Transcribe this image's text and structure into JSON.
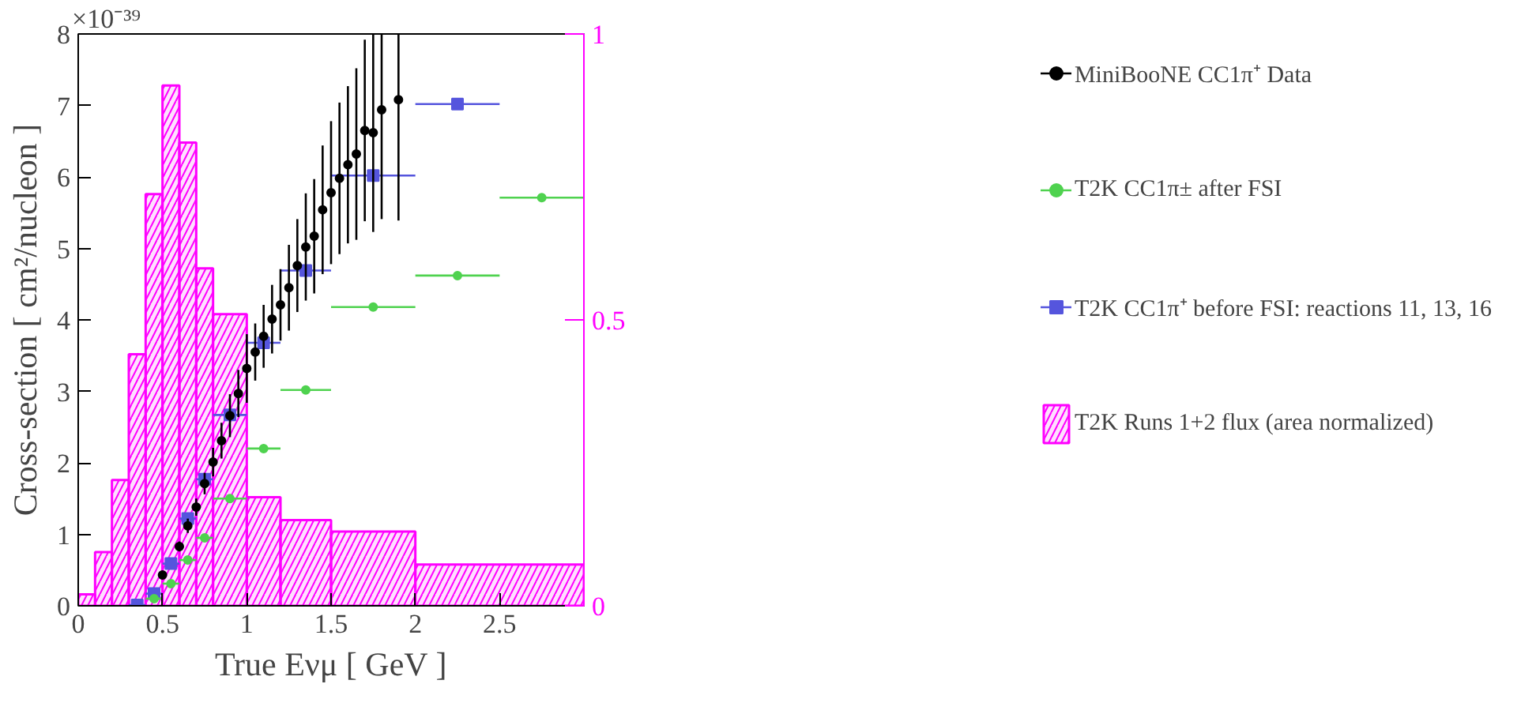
{
  "chart_data": {
    "type": "scatter",
    "xlabel": "True Eνμ [ GeV ]",
    "ylabel": "Cross-section [ cm²/nucleon ]",
    "annotations": [
      "×10⁻³⁹"
    ],
    "xlim": [
      0,
      3
    ],
    "xticks": [
      0,
      0.5,
      1,
      1.5,
      2,
      2.5
    ],
    "ylim": [
      0,
      8
    ],
    "yticks": [
      0,
      1,
      2,
      3,
      4,
      5,
      6,
      7,
      8
    ],
    "y2lim": [
      0,
      1
    ],
    "y2ticks": [
      0,
      0.5,
      1
    ],
    "grid": false,
    "legend": "right",
    "series": [
      {
        "name": "MiniBooNE CC1π⁺ Data",
        "color": "#000000",
        "marker": "circle",
        "x": [
          0.5,
          0.6,
          0.65,
          0.7,
          0.75,
          0.8,
          0.85,
          0.9,
          0.95,
          1.0,
          1.05,
          1.1,
          1.15,
          1.2,
          1.25,
          1.3,
          1.35,
          1.4,
          1.45,
          1.5,
          1.55,
          1.6,
          1.65,
          1.7,
          1.75,
          1.8,
          1.9
        ],
        "values": [
          0.43,
          0.83,
          1.12,
          1.38,
          1.71,
          2.01,
          2.31,
          2.66,
          2.97,
          3.32,
          3.55,
          3.77,
          4.01,
          4.21,
          4.45,
          4.76,
          5.02,
          5.17,
          5.54,
          5.78,
          5.98,
          6.17,
          6.32,
          6.65,
          6.62,
          6.94,
          7.08
        ],
        "errors": [
          0.05,
          0.07,
          0.1,
          0.12,
          0.15,
          0.2,
          0.25,
          0.3,
          0.33,
          0.48,
          0.4,
          0.44,
          0.48,
          0.5,
          0.6,
          0.65,
          0.75,
          0.8,
          0.9,
          1.0,
          1.06,
          1.1,
          1.2,
          1.27,
          [
            5.23,
            8
          ],
          [
            5.41,
            8
          ],
          [
            5.39,
            8
          ]
        ]
      },
      {
        "name": "T2K CC1π± after FSI",
        "color": "#4fd24f",
        "marker": "circle",
        "x": [
          0.45,
          0.55,
          0.65,
          0.75,
          0.9,
          1.1,
          1.35,
          1.75,
          2.25,
          2.75
        ],
        "values": [
          0.1,
          0.31,
          0.64,
          0.95,
          1.5,
          2.2,
          3.02,
          4.18,
          4.62,
          5.71
        ],
        "xerrors": [
          0.05,
          0.05,
          0.05,
          0.05,
          0.1,
          0.1,
          0.15,
          0.25,
          0.25,
          0.25
        ]
      },
      {
        "name": "T2K CC1π⁺ before FSI: reactions 11, 13, 16",
        "color": "#5555dd",
        "marker": "square",
        "x": [
          0.35,
          0.45,
          0.55,
          0.65,
          0.75,
          0.9,
          1.1,
          1.35,
          1.75,
          2.25
        ],
        "values": [
          0.01,
          0.17,
          0.59,
          1.22,
          1.77,
          2.67,
          3.68,
          4.69,
          6.02,
          7.02
        ],
        "xerrors": [
          0.05,
          0.05,
          0.05,
          0.05,
          0.05,
          0.1,
          0.1,
          0.15,
          0.25,
          0.25
        ]
      },
      {
        "name": "T2K Runs 1+2 flux (area normalized)",
        "type": "histogram",
        "axis": "y2",
        "color": "#ff00ff",
        "bins": [
          0,
          0.1,
          0.2,
          0.3,
          0.4,
          0.5,
          0.6,
          0.7,
          0.8,
          1.0,
          1.2,
          1.5,
          2.0,
          3.0
        ],
        "values": [
          0.02,
          0.094,
          0.22,
          0.44,
          0.72,
          0.91,
          0.81,
          0.59,
          0.51,
          0.19,
          0.15,
          0.13,
          0.072
        ]
      }
    ]
  }
}
